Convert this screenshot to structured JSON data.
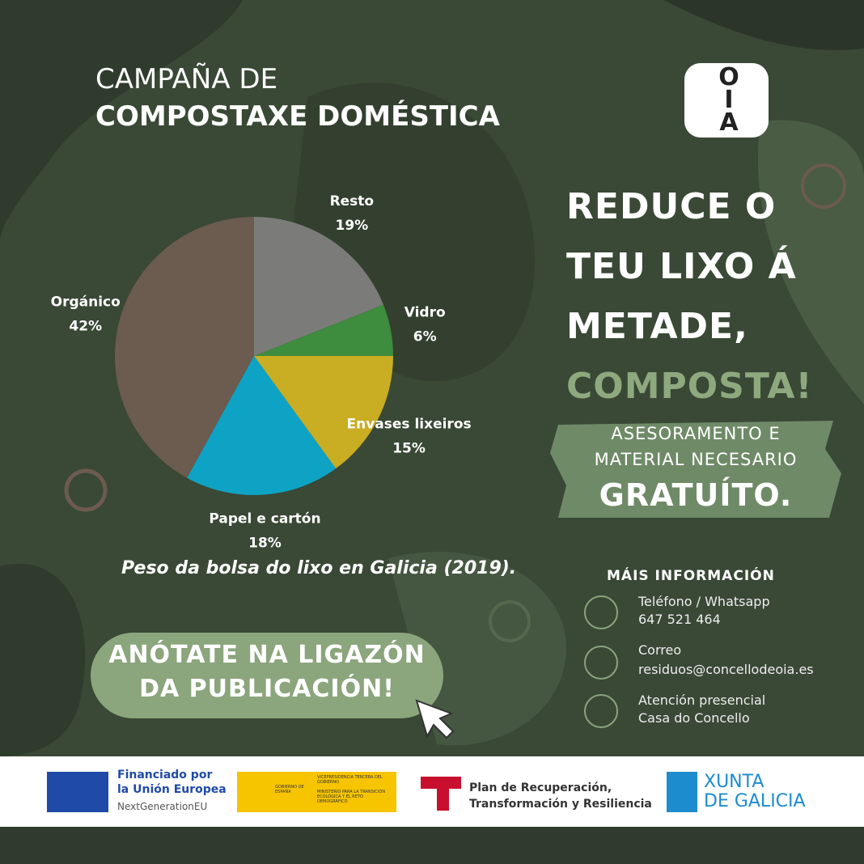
{
  "chart_data": {
    "type": "pie",
    "categories": [
      "Resto",
      "Vidro",
      "Envases lixeiros",
      "Papel e cartón",
      "Orgánico"
    ],
    "values": [
      19,
      6,
      15,
      18,
      42
    ],
    "value_labels": [
      "19%",
      "6%",
      "15%",
      "18%",
      "42%"
    ],
    "colors": [
      "#7b7b79",
      "#3e8c3d",
      "#c9ad22",
      "#0ea3c5",
      "#6c5b4f"
    ],
    "caption": "Peso da bolsa do lixo en Galicia (2019)."
  },
  "header": {
    "line1": "CAMPAÑA DE",
    "line2": "COMPOSTAXE DOMÉSTICA",
    "logo": [
      "O",
      "I",
      "A"
    ]
  },
  "headline": {
    "lines": [
      "REDUCE O",
      "TEU LIXO Á",
      "METADE,"
    ],
    "accent": "COMPOSTA!"
  },
  "offer": {
    "lines": [
      "ASESORAMENTO E",
      "MATERIAL NECESARIO"
    ],
    "accent": "GRATUÍTO."
  },
  "button": {
    "lines": [
      "ANÓTATE NA LIGAZÓN",
      "DA PUBLICACIÓN!"
    ]
  },
  "contact": {
    "title": "MÁIS INFORMACIÓN",
    "items": [
      {
        "label": "Teléfono / Whatsapp",
        "value": "647 521 464"
      },
      {
        "label": "Correo",
        "value": "residuos@concellodeoia.es"
      },
      {
        "label": "Atención presencial",
        "value": "Casa do Concello"
      }
    ]
  },
  "footer": {
    "eu": [
      "Financiado por",
      "la Unión Europea",
      "NextGenerationEU"
    ],
    "gov": [
      "GOBIERNO DE ESPAÑA",
      "VICEPRESIDENCIA TERCERA DEL GOBIERNO",
      "MINISTERIO PARA LA TRANSICIÓN ECOLÓGICA Y EL RETO DEMOGRÁFICO"
    ],
    "plan": [
      "Plan de Recuperación,",
      "Transformación y Resiliencia"
    ],
    "xunta": [
      "XUNTA",
      "DE GALICIA"
    ]
  }
}
